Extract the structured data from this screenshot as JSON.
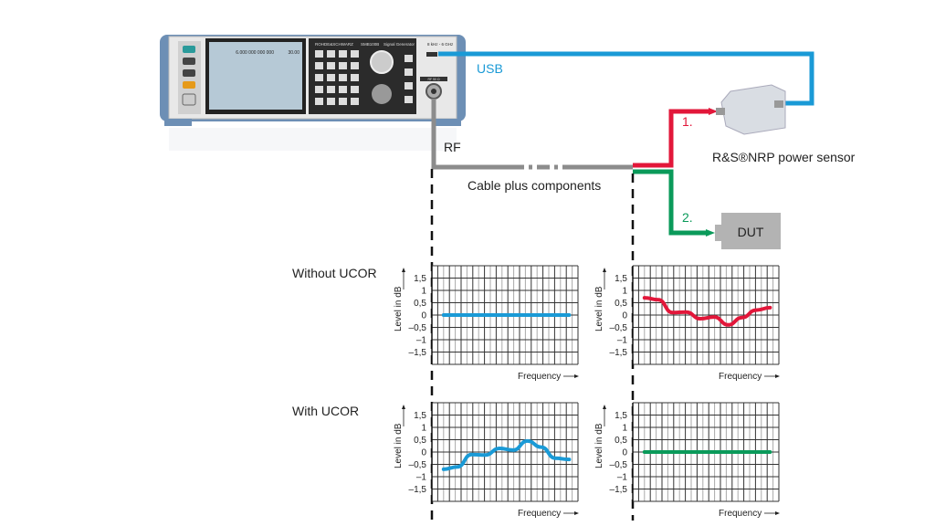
{
  "diagram": {
    "usb_label": "USB",
    "rf_label": "RF",
    "cable_label": "Cable plus components",
    "sensor_label": "R&S®NRP power sensor",
    "dut_label": "DUT",
    "path1_label": "1.",
    "path2_label": "2.",
    "row1_label": "Without UCOR",
    "row2_label": "With UCOR",
    "colors": {
      "usb": "#1a9ad6",
      "rf_cable": "#8c8c8c",
      "path1": "#e2173a",
      "path2": "#0a9a5a",
      "dut": "#b3b3b3"
    }
  },
  "instrument": {
    "brand": "ROHDE&SCHWARZ",
    "model": "SMB100B",
    "type": "Signal Generator",
    "frequency_readout": "6.000 000 000 000",
    "level_readout": "30.00",
    "range": "8 kHz - 6 GHz",
    "rf_port": "RF 50 Ω"
  },
  "chart_data": [
    {
      "type": "line",
      "xlabel": "Frequency",
      "ylabel": "Level in dB",
      "ylim": [
        -2,
        2
      ],
      "yticks": [
        "1,5",
        "1",
        "0,5",
        "0",
        "–0,5",
        "–1",
        "–1,5"
      ],
      "ytick_values": [
        1.5,
        1,
        0.5,
        0,
        -0.5,
        -1,
        -1.5
      ],
      "grid": true,
      "color": "#1a9ad6",
      "values": [
        0,
        0,
        0,
        0,
        0,
        0,
        0,
        0,
        0,
        0
      ]
    },
    {
      "type": "line",
      "xlabel": "Frequency",
      "ylabel": "Level in dB",
      "ylim": [
        -2,
        2
      ],
      "yticks": [
        "1,5",
        "1",
        "0,5",
        "0",
        "–0,5",
        "–1",
        "–1,5"
      ],
      "ytick_values": [
        1.5,
        1,
        0.5,
        0,
        -0.5,
        -1,
        -1.5
      ],
      "grid": true,
      "color": "#e2173a",
      "values": [
        0.7,
        0.62,
        0.1,
        0.12,
        -0.15,
        -0.08,
        -0.4,
        -0.1,
        0.2,
        0.3
      ]
    },
    {
      "type": "line",
      "xlabel": "Frequency",
      "ylabel": "Level in dB",
      "ylim": [
        -2,
        2
      ],
      "yticks": [
        "1,5",
        "1",
        "0,5",
        "0",
        "–0,5",
        "–1",
        "–1,5"
      ],
      "ytick_values": [
        1.5,
        1,
        0.5,
        0,
        -0.5,
        -1,
        -1.5
      ],
      "grid": true,
      "color": "#1a9ad6",
      "values": [
        -0.7,
        -0.6,
        -0.1,
        -0.12,
        0.15,
        0.08,
        0.45,
        0.2,
        -0.25,
        -0.3
      ]
    },
    {
      "type": "line",
      "xlabel": "Frequency",
      "ylabel": "Level in dB",
      "ylim": [
        -2,
        2
      ],
      "yticks": [
        "1,5",
        "1",
        "0,5",
        "0",
        "–0,5",
        "–1",
        "–1,5"
      ],
      "ytick_values": [
        1.5,
        1,
        0.5,
        0,
        -0.5,
        -1,
        -1.5
      ],
      "grid": true,
      "color": "#0a9a5a",
      "values": [
        0,
        0,
        0,
        0,
        0,
        0,
        0,
        0,
        0,
        0
      ]
    }
  ]
}
